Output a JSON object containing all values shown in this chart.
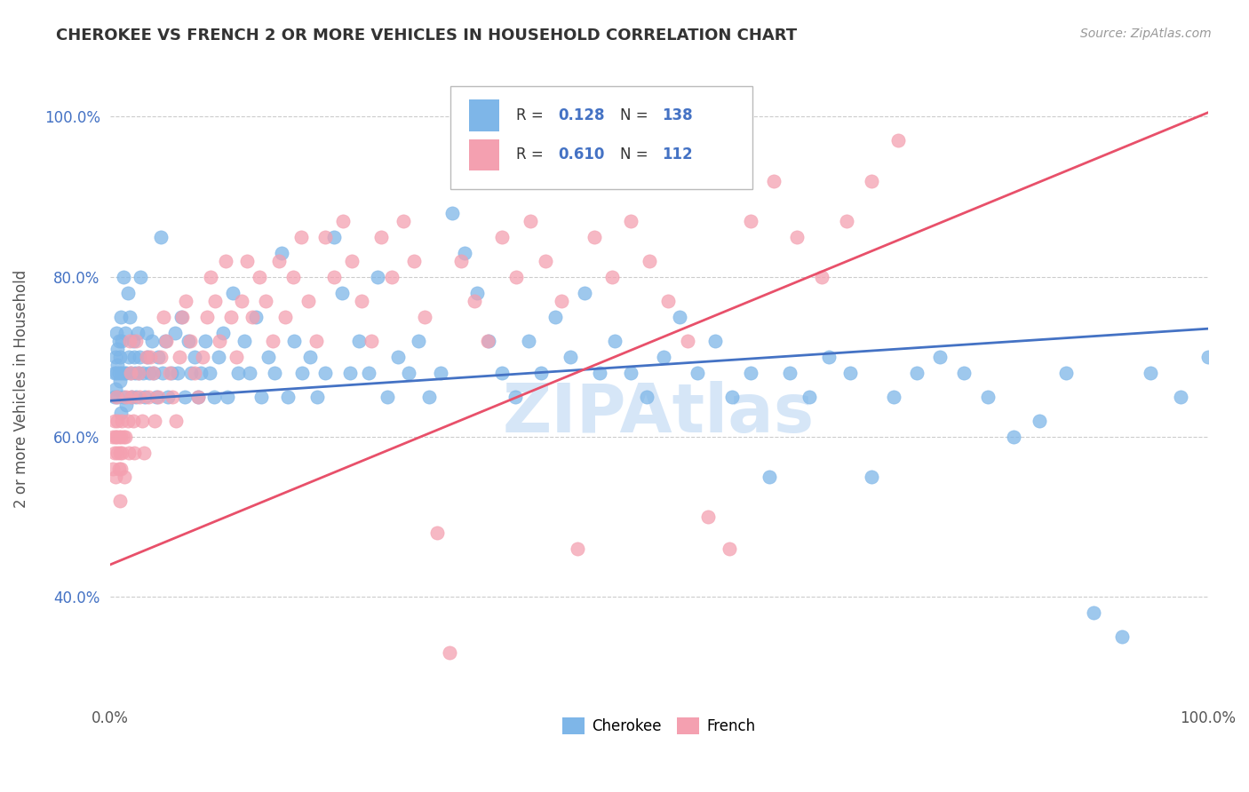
{
  "title": "CHEROKEE VS FRENCH 2 OR MORE VEHICLES IN HOUSEHOLD CORRELATION CHART",
  "source": "Source: ZipAtlas.com",
  "ylabel": "2 or more Vehicles in Household",
  "xlim": [
    0.0,
    1.0
  ],
  "ylim": [
    0.27,
    1.05
  ],
  "x_tick_labels": [
    "0.0%",
    "100.0%"
  ],
  "y_tick_labels": [
    "40.0%",
    "60.0%",
    "80.0%",
    "100.0%"
  ],
  "y_tick_values": [
    0.4,
    0.6,
    0.8,
    1.0
  ],
  "legend_blue_R": "0.128",
  "legend_blue_N": "138",
  "legend_pink_R": "0.610",
  "legend_pink_N": "112",
  "legend_labels": [
    "Cherokee",
    "French"
  ],
  "blue_color": "#7EB6E8",
  "pink_color": "#F4A0B0",
  "blue_line_color": "#4472C4",
  "pink_line_color": "#E8506A",
  "watermark_color": "#C5DCF5",
  "blue_line": [
    [
      0.0,
      0.645
    ],
    [
      1.0,
      0.735
    ]
  ],
  "pink_line": [
    [
      0.0,
      0.44
    ],
    [
      1.0,
      1.005
    ]
  ],
  "blue_scatter": [
    [
      0.004,
      0.68
    ],
    [
      0.004,
      0.65
    ],
    [
      0.005,
      0.7
    ],
    [
      0.005,
      0.66
    ],
    [
      0.006,
      0.68
    ],
    [
      0.006,
      0.73
    ],
    [
      0.007,
      0.65
    ],
    [
      0.007,
      0.71
    ],
    [
      0.007,
      0.69
    ],
    [
      0.008,
      0.68
    ],
    [
      0.008,
      0.72
    ],
    [
      0.009,
      0.67
    ],
    [
      0.009,
      0.7
    ],
    [
      0.01,
      0.75
    ],
    [
      0.01,
      0.63
    ],
    [
      0.011,
      0.68
    ],
    [
      0.011,
      0.72
    ],
    [
      0.012,
      0.65
    ],
    [
      0.012,
      0.8
    ],
    [
      0.013,
      0.68
    ],
    [
      0.014,
      0.73
    ],
    [
      0.015,
      0.68
    ],
    [
      0.015,
      0.64
    ],
    [
      0.016,
      0.78
    ],
    [
      0.017,
      0.7
    ],
    [
      0.018,
      0.75
    ],
    [
      0.019,
      0.68
    ],
    [
      0.02,
      0.65
    ],
    [
      0.021,
      0.72
    ],
    [
      0.022,
      0.7
    ],
    [
      0.023,
      0.68
    ],
    [
      0.024,
      0.65
    ],
    [
      0.025,
      0.73
    ],
    [
      0.026,
      0.68
    ],
    [
      0.027,
      0.7
    ],
    [
      0.028,
      0.8
    ],
    [
      0.03,
      0.68
    ],
    [
      0.032,
      0.65
    ],
    [
      0.033,
      0.73
    ],
    [
      0.034,
      0.7
    ],
    [
      0.036,
      0.68
    ],
    [
      0.038,
      0.72
    ],
    [
      0.04,
      0.68
    ],
    [
      0.042,
      0.65
    ],
    [
      0.044,
      0.7
    ],
    [
      0.046,
      0.85
    ],
    [
      0.048,
      0.68
    ],
    [
      0.05,
      0.72
    ],
    [
      0.053,
      0.65
    ],
    [
      0.056,
      0.68
    ],
    [
      0.059,
      0.73
    ],
    [
      0.062,
      0.68
    ],
    [
      0.065,
      0.75
    ],
    [
      0.068,
      0.65
    ],
    [
      0.071,
      0.72
    ],
    [
      0.074,
      0.68
    ],
    [
      0.077,
      0.7
    ],
    [
      0.08,
      0.65
    ],
    [
      0.083,
      0.68
    ],
    [
      0.087,
      0.72
    ],
    [
      0.091,
      0.68
    ],
    [
      0.095,
      0.65
    ],
    [
      0.099,
      0.7
    ],
    [
      0.103,
      0.73
    ],
    [
      0.107,
      0.65
    ],
    [
      0.112,
      0.78
    ],
    [
      0.117,
      0.68
    ],
    [
      0.122,
      0.72
    ],
    [
      0.127,
      0.68
    ],
    [
      0.133,
      0.75
    ],
    [
      0.138,
      0.65
    ],
    [
      0.144,
      0.7
    ],
    [
      0.15,
      0.68
    ],
    [
      0.156,
      0.83
    ],
    [
      0.162,
      0.65
    ],
    [
      0.168,
      0.72
    ],
    [
      0.175,
      0.68
    ],
    [
      0.182,
      0.7
    ],
    [
      0.189,
      0.65
    ],
    [
      0.196,
      0.68
    ],
    [
      0.204,
      0.85
    ],
    [
      0.211,
      0.78
    ],
    [
      0.219,
      0.68
    ],
    [
      0.227,
      0.72
    ],
    [
      0.236,
      0.68
    ],
    [
      0.244,
      0.8
    ],
    [
      0.253,
      0.65
    ],
    [
      0.262,
      0.7
    ],
    [
      0.272,
      0.68
    ],
    [
      0.281,
      0.72
    ],
    [
      0.291,
      0.65
    ],
    [
      0.301,
      0.68
    ],
    [
      0.312,
      0.88
    ],
    [
      0.323,
      0.83
    ],
    [
      0.334,
      0.78
    ],
    [
      0.345,
      0.72
    ],
    [
      0.357,
      0.68
    ],
    [
      0.369,
      0.65
    ],
    [
      0.381,
      0.72
    ],
    [
      0.393,
      0.68
    ],
    [
      0.406,
      0.75
    ],
    [
      0.419,
      0.7
    ],
    [
      0.432,
      0.78
    ],
    [
      0.446,
      0.68
    ],
    [
      0.46,
      0.72
    ],
    [
      0.474,
      0.68
    ],
    [
      0.489,
      0.65
    ],
    [
      0.504,
      0.7
    ],
    [
      0.519,
      0.75
    ],
    [
      0.535,
      0.68
    ],
    [
      0.551,
      0.72
    ],
    [
      0.567,
      0.65
    ],
    [
      0.584,
      0.68
    ],
    [
      0.601,
      0.55
    ],
    [
      0.619,
      0.68
    ],
    [
      0.637,
      0.65
    ],
    [
      0.655,
      0.7
    ],
    [
      0.674,
      0.68
    ],
    [
      0.694,
      0.55
    ],
    [
      0.714,
      0.65
    ],
    [
      0.735,
      0.68
    ],
    [
      0.756,
      0.7
    ],
    [
      0.778,
      0.68
    ],
    [
      0.8,
      0.65
    ],
    [
      0.823,
      0.6
    ],
    [
      0.847,
      0.62
    ],
    [
      0.871,
      0.68
    ],
    [
      0.896,
      0.38
    ],
    [
      0.922,
      0.35
    ],
    [
      0.948,
      0.68
    ],
    [
      0.975,
      0.65
    ],
    [
      1.0,
      0.7
    ]
  ],
  "pink_scatter": [
    [
      0.003,
      0.6
    ],
    [
      0.003,
      0.56
    ],
    [
      0.004,
      0.62
    ],
    [
      0.004,
      0.58
    ],
    [
      0.005,
      0.6
    ],
    [
      0.005,
      0.55
    ],
    [
      0.006,
      0.6
    ],
    [
      0.006,
      0.65
    ],
    [
      0.007,
      0.58
    ],
    [
      0.007,
      0.62
    ],
    [
      0.008,
      0.56
    ],
    [
      0.008,
      0.6
    ],
    [
      0.009,
      0.58
    ],
    [
      0.009,
      0.52
    ],
    [
      0.01,
      0.6
    ],
    [
      0.01,
      0.56
    ],
    [
      0.011,
      0.62
    ],
    [
      0.011,
      0.58
    ],
    [
      0.012,
      0.6
    ],
    [
      0.013,
      0.55
    ],
    [
      0.014,
      0.6
    ],
    [
      0.015,
      0.65
    ],
    [
      0.016,
      0.62
    ],
    [
      0.017,
      0.58
    ],
    [
      0.018,
      0.72
    ],
    [
      0.019,
      0.68
    ],
    [
      0.02,
      0.65
    ],
    [
      0.021,
      0.62
    ],
    [
      0.022,
      0.58
    ],
    [
      0.024,
      0.72
    ],
    [
      0.026,
      0.68
    ],
    [
      0.027,
      0.65
    ],
    [
      0.029,
      0.62
    ],
    [
      0.031,
      0.58
    ],
    [
      0.033,
      0.7
    ],
    [
      0.035,
      0.65
    ],
    [
      0.037,
      0.7
    ],
    [
      0.039,
      0.68
    ],
    [
      0.041,
      0.62
    ],
    [
      0.044,
      0.65
    ],
    [
      0.046,
      0.7
    ],
    [
      0.049,
      0.75
    ],
    [
      0.051,
      0.72
    ],
    [
      0.054,
      0.68
    ],
    [
      0.057,
      0.65
    ],
    [
      0.06,
      0.62
    ],
    [
      0.063,
      0.7
    ],
    [
      0.066,
      0.75
    ],
    [
      0.069,
      0.77
    ],
    [
      0.073,
      0.72
    ],
    [
      0.077,
      0.68
    ],
    [
      0.08,
      0.65
    ],
    [
      0.084,
      0.7
    ],
    [
      0.088,
      0.75
    ],
    [
      0.092,
      0.8
    ],
    [
      0.096,
      0.77
    ],
    [
      0.1,
      0.72
    ],
    [
      0.105,
      0.82
    ],
    [
      0.11,
      0.75
    ],
    [
      0.115,
      0.7
    ],
    [
      0.12,
      0.77
    ],
    [
      0.125,
      0.82
    ],
    [
      0.13,
      0.75
    ],
    [
      0.136,
      0.8
    ],
    [
      0.142,
      0.77
    ],
    [
      0.148,
      0.72
    ],
    [
      0.154,
      0.82
    ],
    [
      0.16,
      0.75
    ],
    [
      0.167,
      0.8
    ],
    [
      0.174,
      0.85
    ],
    [
      0.181,
      0.77
    ],
    [
      0.188,
      0.72
    ],
    [
      0.196,
      0.85
    ],
    [
      0.204,
      0.8
    ],
    [
      0.212,
      0.87
    ],
    [
      0.22,
      0.82
    ],
    [
      0.229,
      0.77
    ],
    [
      0.238,
      0.72
    ],
    [
      0.247,
      0.85
    ],
    [
      0.257,
      0.8
    ],
    [
      0.267,
      0.87
    ],
    [
      0.277,
      0.82
    ],
    [
      0.287,
      0.75
    ],
    [
      0.298,
      0.48
    ],
    [
      0.309,
      0.33
    ],
    [
      0.32,
      0.82
    ],
    [
      0.332,
      0.77
    ],
    [
      0.344,
      0.72
    ],
    [
      0.357,
      0.85
    ],
    [
      0.37,
      0.8
    ],
    [
      0.383,
      0.87
    ],
    [
      0.397,
      0.82
    ],
    [
      0.411,
      0.77
    ],
    [
      0.426,
      0.46
    ],
    [
      0.441,
      0.85
    ],
    [
      0.457,
      0.8
    ],
    [
      0.474,
      0.87
    ],
    [
      0.491,
      0.82
    ],
    [
      0.508,
      0.77
    ],
    [
      0.526,
      0.72
    ],
    [
      0.545,
      0.5
    ],
    [
      0.564,
      0.46
    ],
    [
      0.584,
      0.87
    ],
    [
      0.605,
      0.92
    ],
    [
      0.626,
      0.85
    ],
    [
      0.648,
      0.8
    ],
    [
      0.671,
      0.87
    ],
    [
      0.694,
      0.92
    ],
    [
      0.718,
      0.97
    ]
  ]
}
